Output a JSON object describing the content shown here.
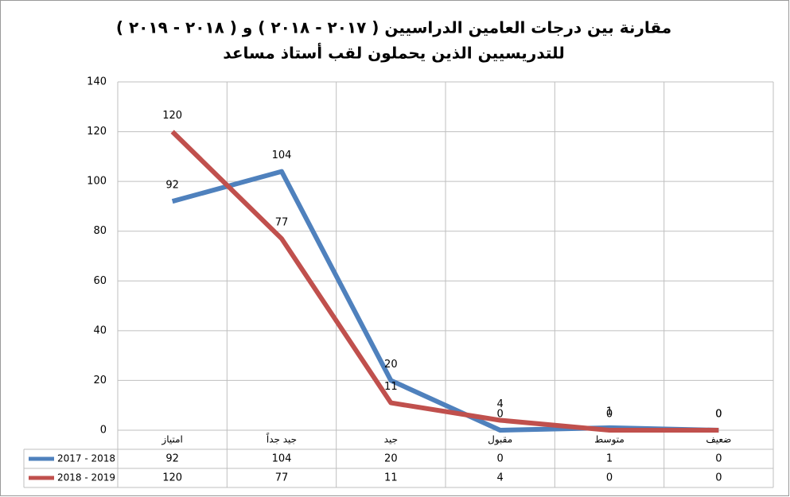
{
  "chart_data": {
    "type": "line",
    "title": "مقارنة بين درجات العامين الدراسيين ( ٢٠١٧ - ٢٠١٨ ) و ( ٢٠١٨ - ٢٠١٩ )",
    "subtitle": "للتدريسيين الذين يحملون لقب أستاذ مساعد",
    "categories": [
      "امتياز",
      "جيد جداً",
      "جيد",
      "مقبول",
      "متوسط",
      "ضعيف"
    ],
    "series": [
      {
        "name": "2017 - 2018",
        "color": "#4f81bd",
        "values": [
          92,
          104,
          20,
          0,
          1,
          0
        ]
      },
      {
        "name": "2018 - 2019",
        "color": "#c0504d",
        "values": [
          120,
          77,
          11,
          4,
          0,
          0
        ]
      }
    ],
    "ylim": [
      0,
      140
    ],
    "yticks": [
      0,
      20,
      40,
      60,
      80,
      100,
      120,
      140
    ],
    "grid": true
  }
}
